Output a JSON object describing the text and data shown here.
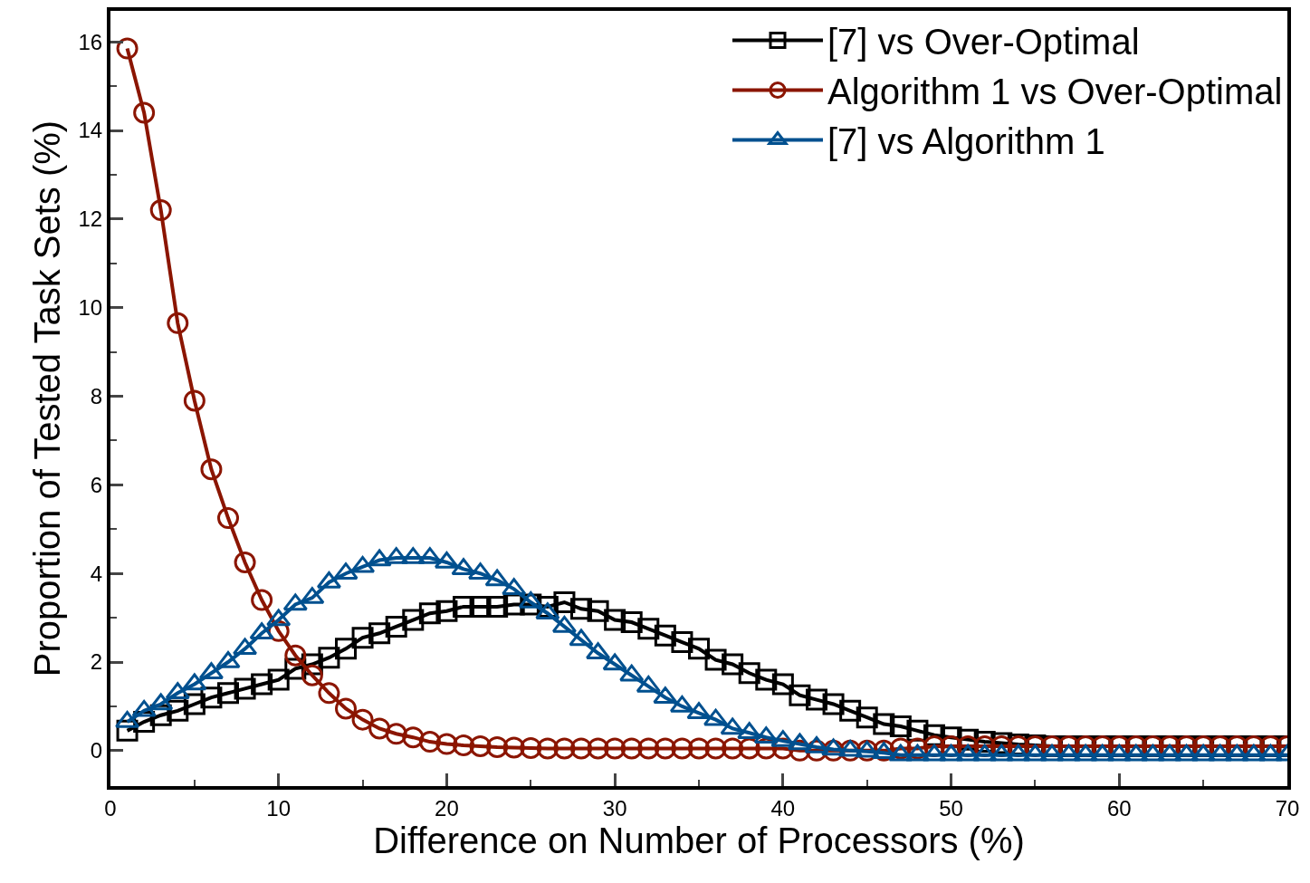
{
  "chart_data": {
    "type": "line",
    "xlabel": "Difference on Number of Processors (%)",
    "ylabel": "Proportion of Tested Task Sets (%)",
    "x": [
      1,
      2,
      3,
      4,
      5,
      6,
      7,
      8,
      9,
      10,
      11,
      12,
      13,
      14,
      15,
      16,
      17,
      18,
      19,
      20,
      21,
      22,
      23,
      24,
      25,
      26,
      27,
      28,
      29,
      30,
      31,
      32,
      33,
      34,
      35,
      36,
      37,
      38,
      39,
      40,
      41,
      42,
      43,
      44,
      45,
      46,
      47,
      48,
      49,
      50,
      51,
      52,
      53,
      54,
      55,
      56,
      57,
      58,
      59,
      60,
      61,
      62,
      63,
      64,
      65,
      66,
      67,
      68,
      69,
      70
    ],
    "series": [
      {
        "name": "[7] vs Over-Optimal",
        "color": "#000000",
        "marker": "square",
        "values": [
          0.45,
          0.65,
          0.8,
          0.9,
          1.05,
          1.2,
          1.3,
          1.4,
          1.5,
          1.6,
          1.85,
          1.95,
          2.1,
          2.3,
          2.55,
          2.65,
          2.8,
          2.95,
          3.1,
          3.15,
          3.25,
          3.25,
          3.25,
          3.3,
          3.3,
          3.25,
          3.35,
          3.2,
          3.15,
          2.95,
          2.9,
          2.75,
          2.6,
          2.45,
          2.3,
          2.05,
          1.95,
          1.75,
          1.6,
          1.5,
          1.25,
          1.15,
          1.05,
          0.9,
          0.75,
          0.6,
          0.55,
          0.45,
          0.35,
          0.3,
          0.25,
          0.2,
          0.17,
          0.14,
          0.12,
          0.1,
          0.1,
          0.1,
          0.1,
          0.1,
          0.1,
          0.1,
          0.1,
          0.1,
          0.1,
          0.1,
          0.1,
          0.1,
          0.1,
          0.1
        ]
      },
      {
        "name": "Algorithm 1 vs Over-Optimal",
        "color": "#8b1500",
        "marker": "circle",
        "values": [
          15.85,
          14.4,
          12.2,
          9.65,
          7.9,
          6.35,
          5.25,
          4.25,
          3.4,
          2.7,
          2.15,
          1.7,
          1.3,
          0.95,
          0.7,
          0.5,
          0.38,
          0.3,
          0.2,
          0.15,
          0.12,
          0.1,
          0.08,
          0.07,
          0.06,
          0.05,
          0.05,
          0.05,
          0.05,
          0.05,
          0.05,
          0.05,
          0.05,
          0.05,
          0.05,
          0.05,
          0.05,
          0.05,
          0.05,
          0.05,
          0.0,
          0.0,
          0.0,
          0.0,
          0.0,
          0.0,
          0.05,
          0.05,
          0.1,
          0.1,
          0.1,
          0.1,
          0.1,
          0.1,
          0.1,
          0.1,
          0.1,
          0.1,
          0.1,
          0.1,
          0.1,
          0.1,
          0.1,
          0.1,
          0.1,
          0.1,
          0.1,
          0.1,
          0.1,
          0.1
        ]
      },
      {
        "name": "[7] vs Algorithm 1",
        "color": "#00508f",
        "marker": "triangle",
        "values": [
          0.65,
          0.9,
          1.05,
          1.3,
          1.5,
          1.75,
          2.0,
          2.3,
          2.65,
          2.95,
          3.3,
          3.45,
          3.8,
          4.0,
          4.15,
          4.3,
          4.35,
          4.35,
          4.35,
          4.25,
          4.1,
          4.0,
          3.85,
          3.65,
          3.35,
          3.1,
          2.8,
          2.5,
          2.2,
          1.95,
          1.7,
          1.45,
          1.2,
          1.0,
          0.85,
          0.7,
          0.5,
          0.4,
          0.3,
          0.22,
          0.15,
          0.08,
          0.03,
          0.0,
          -0.02,
          -0.05,
          -0.1,
          -0.1,
          -0.1,
          -0.1,
          -0.1,
          -0.1,
          -0.1,
          -0.1,
          -0.1,
          -0.1,
          -0.1,
          -0.1,
          -0.1,
          -0.1,
          -0.1,
          -0.1,
          -0.1,
          -0.1,
          -0.1,
          -0.1,
          -0.1,
          -0.1,
          -0.1,
          -0.1
        ]
      }
    ],
    "xlim": [
      0,
      70
    ],
    "xticks": [
      0,
      10,
      20,
      30,
      40,
      50,
      60,
      70
    ],
    "ylim": [
      -0.8,
      16.7
    ],
    "yticks": [
      0,
      2,
      4,
      6,
      8,
      10,
      12,
      14,
      16
    ],
    "legend": "top right",
    "line_style": "solid"
  }
}
